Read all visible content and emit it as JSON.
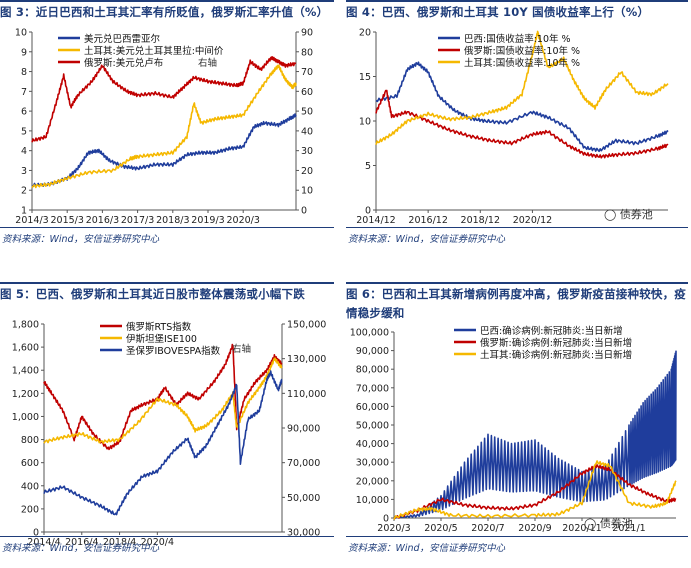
{
  "source_text": "资料来源：Wind，安信证券研究中心",
  "watermark": "债券池",
  "panels": [
    {
      "title": "图 3：近日巴西和土耳其汇率有所贬值，俄罗斯汇率升值（%）"
    },
    {
      "title": "图 4：巴西、俄罗斯和土耳其 10Y 国债收益率上行（%）"
    },
    {
      "title": "图 5：巴西、俄罗斯和土耳其近日股市整体震荡或小幅下跌"
    },
    {
      "title": "图 6：巴西和土耳其新增病例再度冲高，俄罗斯疫苗接种较快，疫情稳步缓和"
    }
  ],
  "chart_data": [
    {
      "type": "line",
      "x_ticks": [
        "2014/3",
        "2015/3",
        "2016/3",
        "2017/3",
        "2018/3",
        "2019/3",
        "2020/3"
      ],
      "ylim": [
        1,
        10
      ],
      "y_ticks": [
        1,
        2,
        3,
        4,
        5,
        6,
        7,
        8,
        9,
        10
      ],
      "y2lim": [
        0,
        90
      ],
      "y2_ticks": [
        0,
        10,
        20,
        30,
        40,
        50,
        60,
        70,
        80,
        90
      ],
      "right_axis_note": "右轴",
      "series": [
        {
          "name": "美元兑巴西雷亚尔",
          "color": "#1f3d9c",
          "axis": "left",
          "points": [
            [
              0,
              2.25
            ],
            [
              0.5,
              2.3
            ],
            [
              1,
              2.6
            ],
            [
              1.3,
              3.1
            ],
            [
              1.6,
              3.9
            ],
            [
              1.9,
              4.0
            ],
            [
              2.2,
              3.5
            ],
            [
              2.6,
              3.2
            ],
            [
              3,
              3.1
            ],
            [
              3.5,
              3.3
            ],
            [
              4,
              3.3
            ],
            [
              4.4,
              3.8
            ],
            [
              4.8,
              3.9
            ],
            [
              5.2,
              3.9
            ],
            [
              5.6,
              4.1
            ],
            [
              6,
              4.2
            ],
            [
              6.3,
              5.2
            ],
            [
              6.6,
              5.4
            ],
            [
              7,
              5.3
            ],
            [
              7.3,
              5.6
            ],
            [
              7.5,
              5.8
            ]
          ]
        },
        {
          "name": "土耳其:美元兑土耳其里拉:中间价",
          "color": "#f5b800",
          "axis": "left",
          "points": [
            [
              0,
              2.2
            ],
            [
              0.5,
              2.3
            ],
            [
              1,
              2.6
            ],
            [
              1.6,
              2.9
            ],
            [
              2.3,
              3.0
            ],
            [
              2.8,
              3.6
            ],
            [
              3,
              3.7
            ],
            [
              3.5,
              3.8
            ],
            [
              4,
              3.9
            ],
            [
              4.4,
              4.7
            ],
            [
              4.6,
              6.4
            ],
            [
              4.8,
              5.4
            ],
            [
              5.2,
              5.6
            ],
            [
              5.6,
              5.7
            ],
            [
              6,
              5.8
            ],
            [
              6.4,
              6.9
            ],
            [
              6.8,
              7.9
            ],
            [
              7.0,
              8.3
            ],
            [
              7.2,
              7.6
            ],
            [
              7.4,
              7.2
            ],
            [
              7.5,
              7.4
            ]
          ]
        },
        {
          "name": "俄罗斯:美元兑卢布",
          "color": "#c00000",
          "axis": "right",
          "points": [
            [
              0,
              35
            ],
            [
              0.4,
              37
            ],
            [
              0.7,
              55
            ],
            [
              0.9,
              68
            ],
            [
              1.1,
              52
            ],
            [
              1.3,
              58
            ],
            [
              1.7,
              65
            ],
            [
              2.0,
              73
            ],
            [
              2.3,
              65
            ],
            [
              2.7,
              60
            ],
            [
              3,
              58
            ],
            [
              3.5,
              59
            ],
            [
              4,
              57
            ],
            [
              4.3,
              62
            ],
            [
              4.6,
              67
            ],
            [
              5,
              65
            ],
            [
              5.4,
              64
            ],
            [
              5.8,
              63
            ],
            [
              6,
              64
            ],
            [
              6.2,
              75
            ],
            [
              6.5,
              71
            ],
            [
              6.8,
              77
            ],
            [
              7.0,
              75
            ],
            [
              7.2,
              73
            ],
            [
              7.5,
              74
            ]
          ]
        }
      ]
    },
    {
      "type": "line",
      "x_ticks": [
        "2014/12",
        "2016/12",
        "2018/12",
        "2020/12"
      ],
      "ylim": [
        0,
        20
      ],
      "y_ticks": [
        0,
        5,
        10,
        15,
        20
      ],
      "series": [
        {
          "name": "巴西:国债收益率:10年 %",
          "color": "#1f3d9c",
          "points": [
            [
              0,
              12.3
            ],
            [
              0.4,
              12.8
            ],
            [
              0.6,
              15.8
            ],
            [
              0.8,
              16.5
            ],
            [
              1.0,
              15.5
            ],
            [
              1.2,
              12.8
            ],
            [
              1.5,
              11.2
            ],
            [
              1.8,
              10.3
            ],
            [
              2.1,
              10.0
            ],
            [
              2.5,
              9.8
            ],
            [
              3,
              11.0
            ],
            [
              3.3,
              10.4
            ],
            [
              3.7,
              9.2
            ],
            [
              4.0,
              7.0
            ],
            [
              4.3,
              6.7
            ],
            [
              4.6,
              7.8
            ],
            [
              5.0,
              7.5
            ],
            [
              5.4,
              8.3
            ],
            [
              5.6,
              8.8
            ]
          ]
        },
        {
          "name": "俄罗斯:国债收益率:10年 %",
          "color": "#c00000",
          "points": [
            [
              0,
              11.0
            ],
            [
              0.2,
              13.5
            ],
            [
              0.3,
              10.5
            ],
            [
              0.6,
              11.0
            ],
            [
              1.0,
              10.0
            ],
            [
              1.4,
              9.0
            ],
            [
              1.8,
              8.3
            ],
            [
              2.2,
              7.8
            ],
            [
              2.6,
              7.5
            ],
            [
              3.0,
              8.5
            ],
            [
              3.3,
              8.8
            ],
            [
              3.7,
              7.2
            ],
            [
              4.0,
              6.3
            ],
            [
              4.3,
              6.0
            ],
            [
              4.6,
              6.2
            ],
            [
              5.0,
              6.4
            ],
            [
              5.4,
              6.9
            ],
            [
              5.6,
              7.3
            ]
          ]
        },
        {
          "name": "土耳其:国债收益率:10年 %",
          "color": "#f5b800",
          "points": [
            [
              0,
              7.5
            ],
            [
              0.3,
              8.5
            ],
            [
              0.6,
              10.0
            ],
            [
              1.0,
              10.8
            ],
            [
              1.4,
              10.2
            ],
            [
              1.8,
              10.4
            ],
            [
              2.2,
              11.0
            ],
            [
              2.5,
              11.5
            ],
            [
              2.8,
              13.0
            ],
            [
              3.0,
              17.5
            ],
            [
              3.1,
              20.0
            ],
            [
              3.3,
              16.0
            ],
            [
              3.6,
              17.0
            ],
            [
              3.8,
              14.5
            ],
            [
              4.0,
              12.5
            ],
            [
              4.2,
              11.5
            ],
            [
              4.4,
              13.5
            ],
            [
              4.7,
              15.5
            ],
            [
              5.0,
              13.2
            ],
            [
              5.3,
              13.0
            ],
            [
              5.6,
              14.2
            ]
          ]
        }
      ]
    },
    {
      "type": "line",
      "x_ticks": [
        "2014/4",
        "2016/4",
        "2018/4",
        "2020/4"
      ],
      "ylim": [
        0,
        1800
      ],
      "y_ticks": [
        0,
        200,
        400,
        600,
        800,
        1000,
        1200,
        1400,
        1600,
        1800
      ],
      "y2lim": [
        30000,
        150000
      ],
      "y2_ticks": [
        30000,
        50000,
        70000,
        90000,
        110000,
        130000,
        150000
      ],
      "right_axis_note": "右轴",
      "series": [
        {
          "name": "俄罗斯RTS指数",
          "color": "#c00000",
          "axis": "left",
          "points": [
            [
              0,
              1300
            ],
            [
              0.2,
              1200
            ],
            [
              0.5,
              1050
            ],
            [
              0.8,
              800
            ],
            [
              1.0,
              1000
            ],
            [
              1.3,
              850
            ],
            [
              1.7,
              720
            ],
            [
              2.0,
              780
            ],
            [
              2.3,
              1050
            ],
            [
              2.6,
              1100
            ],
            [
              3.0,
              1150
            ],
            [
              3.2,
              1250
            ],
            [
              3.5,
              1100
            ],
            [
              3.8,
              1200
            ],
            [
              4.1,
              1150
            ],
            [
              4.5,
              1300
            ],
            [
              4.8,
              1450
            ],
            [
              5.0,
              1620
            ],
            [
              5.1,
              900
            ],
            [
              5.3,
              1150
            ],
            [
              5.6,
              1300
            ],
            [
              5.9,
              1400
            ],
            [
              6.1,
              1520
            ],
            [
              6.3,
              1450
            ]
          ]
        },
        {
          "name": "伊斯坦堡ISE100",
          "color": "#f5b800",
          "axis": "left",
          "points": [
            [
              0,
              780
            ],
            [
              0.5,
              820
            ],
            [
              1.0,
              850
            ],
            [
              1.5,
              780
            ],
            [
              2.0,
              800
            ],
            [
              2.5,
              950
            ],
            [
              3.0,
              1150
            ],
            [
              3.5,
              1100
            ],
            [
              3.8,
              1000
            ],
            [
              4.0,
              880
            ],
            [
              4.3,
              920
            ],
            [
              4.7,
              1050
            ],
            [
              5.0,
              1200
            ],
            [
              5.1,
              900
            ],
            [
              5.4,
              1120
            ],
            [
              5.7,
              1250
            ],
            [
              5.9,
              1350
            ],
            [
              6.1,
              1500
            ],
            [
              6.3,
              1420
            ]
          ]
        },
        {
          "name": "圣保罗IBOVESPA指数",
          "color": "#1f3d9c",
          "axis": "right",
          "points": [
            [
              0,
              53000
            ],
            [
              0.5,
              56000
            ],
            [
              1.0,
              50000
            ],
            [
              1.5,
              45000
            ],
            [
              1.9,
              40000
            ],
            [
              2.2,
              52000
            ],
            [
              2.6,
              62000
            ],
            [
              3.0,
              65000
            ],
            [
              3.4,
              76000
            ],
            [
              3.8,
              84000
            ],
            [
              4.0,
              73000
            ],
            [
              4.3,
              80000
            ],
            [
              4.6,
              92000
            ],
            [
              4.9,
              104000
            ],
            [
              5.1,
              115000
            ],
            [
              5.2,
              70000
            ],
            [
              5.4,
              95000
            ],
            [
              5.7,
              100000
            ],
            [
              5.9,
              118000
            ],
            [
              6.0,
              122000
            ],
            [
              6.2,
              112000
            ],
            [
              6.3,
              118000
            ]
          ]
        }
      ]
    },
    {
      "type": "line",
      "x_ticks": [
        "2020/3",
        "2020/5",
        "2020/7",
        "2020/9",
        "2020/11",
        "2021/1"
      ],
      "ylim": [
        0,
        100000
      ],
      "y_ticks": [
        0,
        10000,
        20000,
        30000,
        40000,
        50000,
        60000,
        70000,
        80000,
        90000,
        100000
      ],
      "series": [
        {
          "name": "巴西:确诊病例:新冠肺炎:当日新增",
          "color": "#1f3d9c",
          "points": [
            [
              0,
              0
            ],
            [
              0.5,
              2000
            ],
            [
              1.0,
              12000
            ],
            [
              1.5,
              30000
            ],
            [
              2.0,
              45000
            ],
            [
              2.5,
              40000
            ],
            [
              3.0,
              42000
            ],
            [
              3.5,
              32000
            ],
            [
              4.0,
              25000
            ],
            [
              4.5,
              28000
            ],
            [
              5.0,
              50000
            ],
            [
              5.3,
              62000
            ],
            [
              5.6,
              70000
            ],
            [
              5.9,
              80000
            ],
            [
              6.0,
              90000
            ]
          ]
        },
        {
          "name": "俄罗斯:确诊病例:新冠肺炎:当日新增",
          "color": "#c00000",
          "points": [
            [
              0,
              0
            ],
            [
              0.5,
              4000
            ],
            [
              1.0,
              10000
            ],
            [
              1.5,
              7000
            ],
            [
              2.0,
              5500
            ],
            [
              2.5,
              5000
            ],
            [
              3.0,
              7000
            ],
            [
              3.5,
              14000
            ],
            [
              4.0,
              24000
            ],
            [
              4.3,
              28000
            ],
            [
              4.6,
              26000
            ],
            [
              5.0,
              18000
            ],
            [
              5.4,
              13000
            ],
            [
              5.8,
              9000
            ],
            [
              6.0,
              10000
            ]
          ]
        },
        {
          "name": "土耳其:确诊病例:新冠肺炎:当日新增",
          "color": "#f5b800",
          "points": [
            [
              0,
              0
            ],
            [
              0.5,
              4500
            ],
            [
              0.8,
              5000
            ],
            [
              1.2,
              1500
            ],
            [
              2.0,
              1000
            ],
            [
              3.0,
              1500
            ],
            [
              3.5,
              2000
            ],
            [
              4.0,
              8000
            ],
            [
              4.3,
              30000
            ],
            [
              4.6,
              28000
            ],
            [
              5.0,
              8000
            ],
            [
              5.5,
              6000
            ],
            [
              5.8,
              8000
            ],
            [
              6.0,
              20000
            ]
          ]
        }
      ]
    }
  ]
}
